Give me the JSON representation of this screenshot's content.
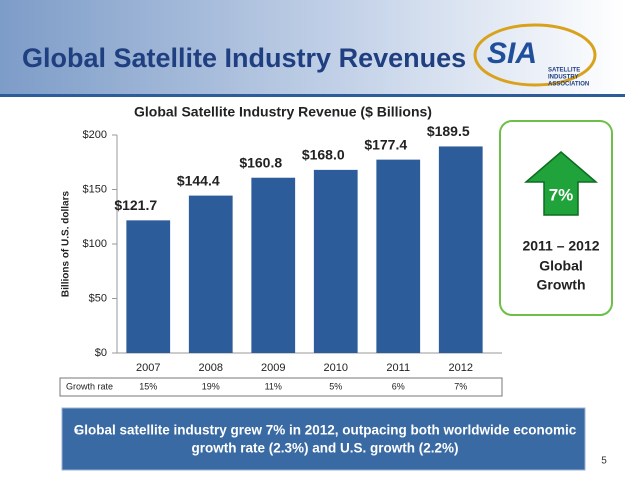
{
  "header": {
    "title": "Global Satellite Industry Revenues",
    "logo": "SIA",
    "logo_subtitle": [
      "SATELLITE",
      "INDUSTRY",
      "ASSOCIATION"
    ]
  },
  "chart_data": {
    "type": "bar",
    "title": "Global Satellite Industry Revenue ($ Billions)",
    "y_label": "Billions of U.S. dollars",
    "categories": [
      "2007",
      "2008",
      "2009",
      "2010",
      "2011",
      "2012"
    ],
    "values": [
      121.7,
      144.4,
      160.8,
      168.0,
      177.4,
      189.5
    ],
    "value_labels": [
      "$121.7",
      "$144.4",
      "$160.8",
      "$168.0",
      "$177.4",
      "$189.5"
    ],
    "color": "#2c5c9a",
    "ylim": [
      0,
      200
    ],
    "yticks": [
      {
        "value": 0,
        "label": "$0"
      },
      {
        "value": 50,
        "label": "$50"
      },
      {
        "value": 100,
        "label": "$100"
      },
      {
        "value": 150,
        "label": "$150"
      },
      {
        "value": 200,
        "label": "$200"
      }
    ],
    "grid": false,
    "growth_rate": {
      "label": "Growth rate",
      "values": [
        "15%",
        "19%",
        "11%",
        "5%",
        "6%",
        "7%"
      ]
    }
  },
  "callout": {
    "value": "7%",
    "lines": [
      "2011 – 2012",
      "Global",
      "Growth"
    ]
  },
  "footer": {
    "bullet": [
      "Global satellite industry grew 7% in 2012, outpacing both worldwide economic",
      "growth rate (2.3%) and U.S. growth (2.2%)"
    ],
    "page": "5"
  }
}
